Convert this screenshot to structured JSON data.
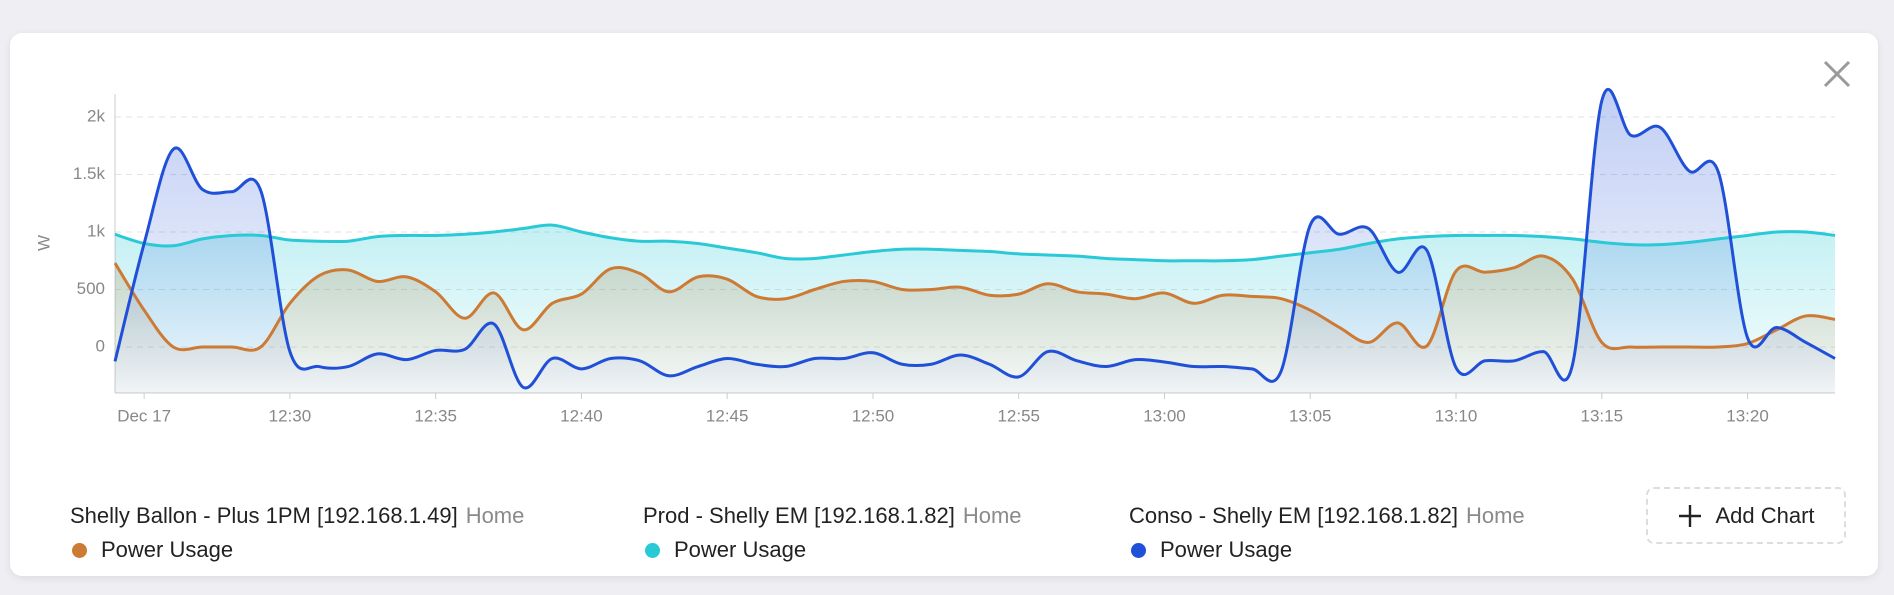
{
  "chart_data": {
    "type": "line",
    "y_label": "W",
    "x": [
      "12:24",
      "12:25",
      "12:26",
      "12:27",
      "12:28",
      "12:29",
      "12:30",
      "12:31",
      "12:32",
      "12:33",
      "12:34",
      "12:35",
      "12:36",
      "12:37",
      "12:38",
      "12:39",
      "12:40",
      "12:41",
      "12:42",
      "12:43",
      "12:44",
      "12:45",
      "12:46",
      "12:47",
      "12:48",
      "12:49",
      "12:50",
      "12:51",
      "12:52",
      "12:53",
      "12:54",
      "12:55",
      "12:56",
      "12:57",
      "12:58",
      "12:59",
      "13:00",
      "13:01",
      "13:02",
      "13:03",
      "13:04",
      "13:05",
      "13:06",
      "13:07",
      "13:08",
      "13:09",
      "13:10",
      "13:11",
      "13:12",
      "13:13",
      "13:14",
      "13:15",
      "13:16",
      "13:17",
      "13:18",
      "13:19",
      "13:20",
      "13:21",
      "13:22",
      "13:23"
    ],
    "xlim": [
      "12:24",
      "13:23"
    ],
    "xticks": [
      {
        "value": "12:25",
        "label": "Dec 17"
      },
      "12:30",
      "12:35",
      "12:40",
      "12:45",
      "12:50",
      "12:55",
      "13:00",
      "13:05",
      "13:10",
      "13:15",
      "13:20"
    ],
    "ylim": [
      -400,
      2200
    ],
    "yticks": [
      0,
      500,
      {
        "value": 1000,
        "label": "1k"
      },
      {
        "value": 1500,
        "label": "1.5k"
      },
      {
        "value": 2000,
        "label": "2k"
      }
    ],
    "grid": true,
    "legend_position": "bottom",
    "series": [
      {
        "name": "Power Usage",
        "device": "Shelly Ballon - Plus 1PM [192.168.1.49]",
        "group": "Home",
        "color": "#cd7a35",
        "values": [
          730,
          320,
          0,
          0,
          0,
          0,
          380,
          620,
          670,
          570,
          610,
          480,
          250,
          470,
          150,
          380,
          460,
          680,
          640,
          480,
          610,
          590,
          440,
          420,
          500,
          570,
          570,
          500,
          500,
          520,
          450,
          460,
          550,
          480,
          460,
          420,
          470,
          380,
          450,
          440,
          420,
          320,
          170,
          40,
          210,
          10,
          660,
          650,
          690,
          790,
          590,
          40,
          0,
          0,
          0,
          0,
          30,
          150,
          270,
          240
        ]
      },
      {
        "name": "Power Usage",
        "device": "Prod - Shelly EM [192.168.1.82]",
        "group": "Home",
        "color": "#29c9d6",
        "values": [
          980,
          900,
          880,
          940,
          970,
          970,
          930,
          920,
          920,
          960,
          970,
          970,
          980,
          1000,
          1030,
          1060,
          1000,
          950,
          920,
          920,
          900,
          860,
          820,
          770,
          770,
          800,
          830,
          850,
          850,
          840,
          830,
          810,
          800,
          790,
          770,
          760,
          750,
          750,
          750,
          760,
          790,
          820,
          850,
          900,
          940,
          960,
          970,
          970,
          970,
          960,
          940,
          910,
          890,
          890,
          910,
          940,
          970,
          1000,
          1000,
          970
        ]
      },
      {
        "name": "Power Usage",
        "device": "Conso - Shelly EM [192.168.1.82]",
        "group": "Home",
        "color": "#2050d8",
        "values": [
          -125,
          900,
          1720,
          1370,
          1350,
          1360,
          -40,
          -170,
          -170,
          -60,
          -110,
          -30,
          -20,
          200,
          -350,
          -100,
          -190,
          -100,
          -120,
          -250,
          -170,
          -100,
          -150,
          -170,
          -100,
          -100,
          -50,
          -150,
          -150,
          -70,
          -150,
          -260,
          -40,
          -120,
          -170,
          -110,
          -130,
          -170,
          -170,
          -190,
          -210,
          1060,
          980,
          1030,
          650,
          840,
          -180,
          -120,
          -120,
          -40,
          -150,
          2140,
          1840,
          1910,
          1530,
          1520,
          80,
          170,
          40,
          -100
        ]
      }
    ]
  },
  "ui": {
    "add_chart": "Add Chart"
  }
}
